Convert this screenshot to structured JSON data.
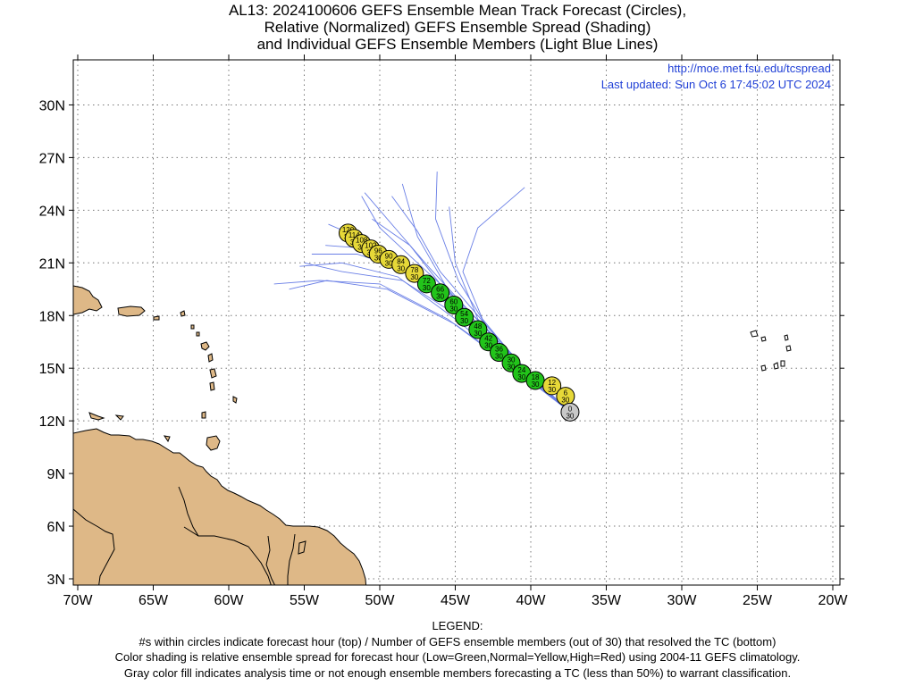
{
  "title": {
    "line1": "AL13: 2024100606 GEFS Ensemble Mean Track Forecast (Circles),",
    "line2": "Relative (Normalized) GEFS Ensemble Spread (Shading)",
    "line3": "and Individual GEFS Ensemble Members (Light Blue Lines)"
  },
  "header": {
    "url": "http://moe.met.fsu.edu/tcspread",
    "updated": "Last updated: Sun Oct 6 17:45:02 UTC 2024"
  },
  "axes": {
    "lat_labels": [
      "3N",
      "6N",
      "9N",
      "12N",
      "15N",
      "18N",
      "21N",
      "24N",
      "27N",
      "30N"
    ],
    "lat_values": [
      3,
      6,
      9,
      12,
      15,
      18,
      21,
      24,
      27,
      30
    ],
    "lon_labels": [
      "70W",
      "65W",
      "60W",
      "55W",
      "50W",
      "45W",
      "40W",
      "35W",
      "30W",
      "25W",
      "20W"
    ],
    "lon_values": [
      -70,
      -65,
      -60,
      -55,
      -50,
      -45,
      -40,
      -35,
      -30,
      -25,
      -20
    ],
    "lon_range": [
      -70,
      -20
    ],
    "lat_range": [
      3,
      32.5
    ],
    "grid": true
  },
  "colors": {
    "land": "#deb887",
    "track_line": "#6a7fe6",
    "low_spread": "#22c41a",
    "normal_spread": "#e6d838",
    "analysis": "#c8c8c8",
    "header_text": "#1f3fd6"
  },
  "track": [
    {
      "hour": "0",
      "members": "30",
      "lon": -37.4,
      "lat": 12.5,
      "spread": "gray"
    },
    {
      "hour": "6",
      "members": "30",
      "lon": -37.7,
      "lat": 13.4,
      "spread": "yellow"
    },
    {
      "hour": "12",
      "members": "30",
      "lon": -38.6,
      "lat": 14.0,
      "spread": "yellow"
    },
    {
      "hour": "18",
      "members": "30",
      "lon": -39.7,
      "lat": 14.3,
      "spread": "green"
    },
    {
      "hour": "24",
      "members": "30",
      "lon": -40.6,
      "lat": 14.7,
      "spread": "green"
    },
    {
      "hour": "30",
      "members": "30",
      "lon": -41.3,
      "lat": 15.3,
      "spread": "green"
    },
    {
      "hour": "36",
      "members": "30",
      "lon": -42.1,
      "lat": 15.9,
      "spread": "green"
    },
    {
      "hour": "42",
      "members": "30",
      "lon": -42.8,
      "lat": 16.5,
      "spread": "green"
    },
    {
      "hour": "48",
      "members": "30",
      "lon": -43.5,
      "lat": 17.2,
      "spread": "green"
    },
    {
      "hour": "54",
      "members": "30",
      "lon": -44.4,
      "lat": 17.9,
      "spread": "green"
    },
    {
      "hour": "60",
      "members": "30",
      "lon": -45.1,
      "lat": 18.6,
      "spread": "green"
    },
    {
      "hour": "66",
      "members": "30",
      "lon": -46.0,
      "lat": 19.3,
      "spread": "green"
    },
    {
      "hour": "72",
      "members": "30",
      "lon": -46.9,
      "lat": 19.8,
      "spread": "green"
    },
    {
      "hour": "78",
      "members": "30",
      "lon": -47.7,
      "lat": 20.4,
      "spread": "yellow"
    },
    {
      "hour": "84",
      "members": "30",
      "lon": -48.6,
      "lat": 20.9,
      "spread": "yellow"
    },
    {
      "hour": "90",
      "members": "30",
      "lon": -49.4,
      "lat": 21.2,
      "spread": "yellow"
    },
    {
      "hour": "96",
      "members": "30",
      "lon": -50.1,
      "lat": 21.5,
      "spread": "yellow"
    },
    {
      "hour": "102",
      "members": "30",
      "lon": -50.6,
      "lat": 21.8,
      "spread": "yellow"
    },
    {
      "hour": "108",
      "members": "30",
      "lon": -51.2,
      "lat": 22.1,
      "spread": "yellow"
    },
    {
      "hour": "114",
      "members": "30",
      "lon": -51.7,
      "lat": 22.4,
      "spread": "yellow"
    },
    {
      "hour": "120",
      "members": "30",
      "lon": -52.1,
      "lat": 22.7,
      "spread": "yellow"
    }
  ],
  "ensemble_members": [
    [
      [
        -37.4,
        12.5
      ],
      [
        -40.0,
        14.5
      ],
      [
        -43.0,
        17.0
      ],
      [
        -45.5,
        19.5
      ],
      [
        -47.5,
        22.5
      ],
      [
        -48.5,
        25.5
      ]
    ],
    [
      [
        -37.4,
        12.5
      ],
      [
        -40.0,
        14.6
      ],
      [
        -43.0,
        17.5
      ],
      [
        -44.8,
        20.0
      ],
      [
        -46.3,
        23.5
      ],
      [
        -46.2,
        26.2
      ]
    ],
    [
      [
        -37.4,
        12.5
      ],
      [
        -40.5,
        15.0
      ],
      [
        -43.5,
        17.8
      ],
      [
        -45.0,
        21.0
      ],
      [
        -45.4,
        24.2
      ]
    ],
    [
      [
        -37.4,
        12.5
      ],
      [
        -40.3,
        14.8
      ],
      [
        -43.2,
        17.8
      ],
      [
        -44.5,
        20.5
      ],
      [
        -43.5,
        23.0
      ],
      [
        -40.4,
        25.3
      ]
    ],
    [
      [
        -37.4,
        12.5
      ],
      [
        -40.5,
        15.0
      ],
      [
        -43.5,
        18.0
      ],
      [
        -46.0,
        20.5
      ],
      [
        -47.5,
        22.8
      ],
      [
        -49.2,
        24.8
      ]
    ],
    [
      [
        -37.4,
        12.5
      ],
      [
        -40.5,
        15.0
      ],
      [
        -43.8,
        18.0
      ],
      [
        -46.8,
        20.8
      ],
      [
        -49.0,
        23.0
      ],
      [
        -51.0,
        25.0
      ]
    ],
    [
      [
        -37.4,
        12.5
      ],
      [
        -40.6,
        15.1
      ],
      [
        -44.0,
        18.2
      ],
      [
        -47.5,
        21.0
      ],
      [
        -50.0,
        23.0
      ],
      [
        -51.2,
        24.8
      ]
    ],
    [
      [
        -37.4,
        12.5
      ],
      [
        -40.8,
        15.0
      ],
      [
        -44.5,
        18.0
      ],
      [
        -48.0,
        20.5
      ],
      [
        -51.5,
        21.5
      ],
      [
        -54.5,
        21.5
      ]
    ],
    [
      [
        -37.4,
        12.5
      ],
      [
        -40.8,
        15.0
      ],
      [
        -44.5,
        17.8
      ],
      [
        -48.5,
        20.0
      ],
      [
        -52.5,
        20.5
      ],
      [
        -55.0,
        21.0
      ]
    ],
    [
      [
        -37.4,
        12.5
      ],
      [
        -41.0,
        15.0
      ],
      [
        -45.0,
        17.5
      ],
      [
        -49.5,
        19.5
      ],
      [
        -53.5,
        20.0
      ],
      [
        -56.0,
        19.5
      ]
    ],
    [
      [
        -37.4,
        12.5
      ],
      [
        -41.0,
        15.0
      ],
      [
        -45.0,
        17.8
      ],
      [
        -48.8,
        20.2
      ],
      [
        -52.5,
        21.0
      ],
      [
        -55.3,
        20.8
      ]
    ],
    [
      [
        -37.4,
        12.5
      ],
      [
        -41.0,
        15.2
      ],
      [
        -45.0,
        18.2
      ],
      [
        -48.5,
        21.0
      ],
      [
        -51.5,
        22.5
      ],
      [
        -53.4,
        23.2
      ]
    ],
    [
      [
        -37.4,
        12.5
      ],
      [
        -40.7,
        15.0
      ],
      [
        -44.0,
        17.8
      ],
      [
        -47.5,
        20.0
      ],
      [
        -50.5,
        21.8
      ],
      [
        -53.6,
        22.0
      ]
    ],
    [
      [
        -37.4,
        12.5
      ],
      [
        -40.5,
        14.9
      ],
      [
        -43.5,
        17.5
      ],
      [
        -46.0,
        19.8
      ],
      [
        -48.0,
        22.0
      ],
      [
        -50.5,
        23.5
      ]
    ],
    [
      [
        -37.4,
        12.5
      ],
      [
        -41.0,
        14.9
      ],
      [
        -45.5,
        17.8
      ],
      [
        -50.0,
        19.8
      ],
      [
        -54.0,
        20.0
      ],
      [
        -57.0,
        19.8
      ]
    ]
  ],
  "legend": {
    "heading": "LEGEND:",
    "line1": "#s within circles indicate forecast hour (top) / Number of GEFS ensemble members (out of 30) that resolved the TC (bottom)",
    "line2": "Color shading is relative ensemble spread for forecast hour (Low=Green,Normal=Yellow,High=Red) using 2004-11 GEFS climatology.",
    "line3": "Gray color fill indicates analysis time or not enough ensemble members forecasting a TC (less than 50%) to warrant classification."
  }
}
